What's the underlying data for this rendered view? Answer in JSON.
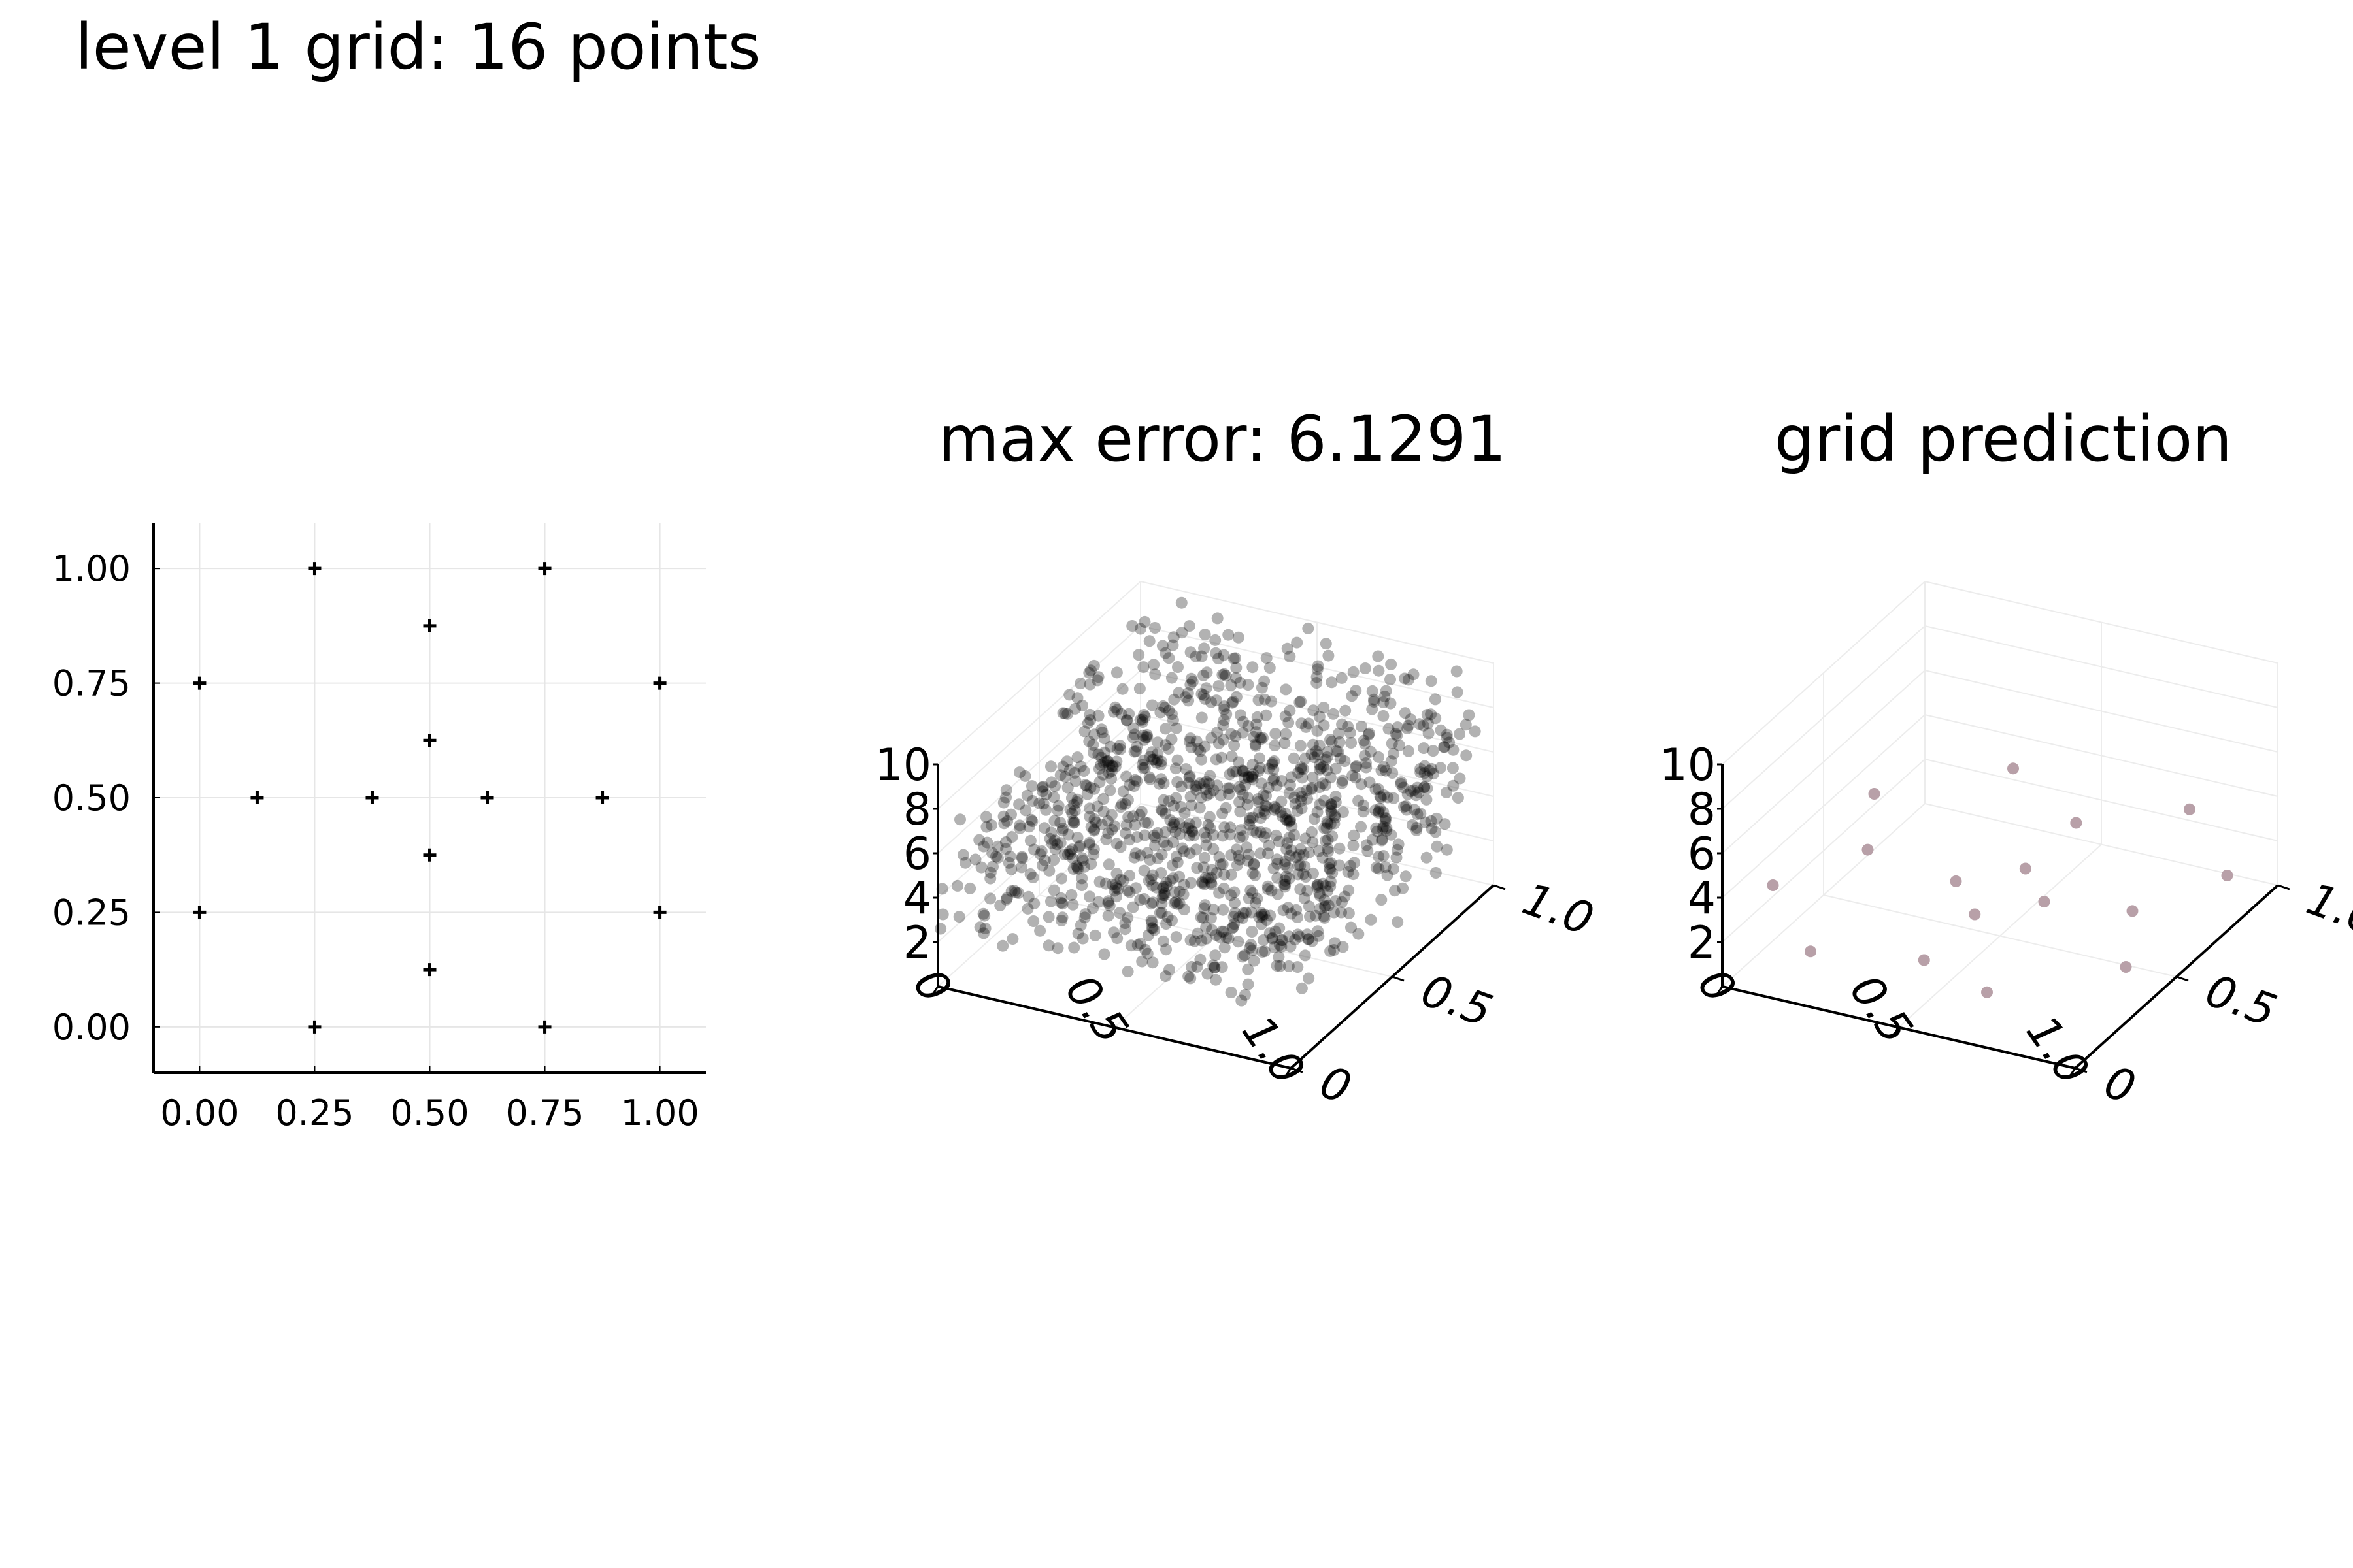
{
  "figure": {
    "title": "level 1 grid: 16 points"
  },
  "colors": {
    "axis": "#000000",
    "grid": "#e6e6e6",
    "markers": "#000000",
    "samples": "#000000",
    "prediction": "#b8a0a8"
  },
  "chart_data": [
    {
      "type": "scatter",
      "title": "",
      "xlabel": "",
      "ylabel": "",
      "marker": "plus",
      "xlim": [
        -0.1,
        1.1
      ],
      "ylim": [
        -0.1,
        1.1
      ],
      "grid": true,
      "x_ticks": [
        "0.00",
        "0.25",
        "0.50",
        "0.75",
        "1.00"
      ],
      "y_ticks": [
        "0.00",
        "0.25",
        "0.50",
        "0.75",
        "1.00"
      ],
      "points": [
        [
          0.25,
          1.0
        ],
        [
          0.75,
          1.0
        ],
        [
          0.5,
          0.875
        ],
        [
          0.0,
          0.75
        ],
        [
          1.0,
          0.75
        ],
        [
          0.5,
          0.625
        ],
        [
          0.125,
          0.5
        ],
        [
          0.375,
          0.5
        ],
        [
          0.625,
          0.5
        ],
        [
          0.875,
          0.5
        ],
        [
          0.5,
          0.375
        ],
        [
          0.0,
          0.25
        ],
        [
          1.0,
          0.25
        ],
        [
          0.5,
          0.125
        ],
        [
          0.25,
          0.0
        ],
        [
          0.75,
          0.0
        ]
      ]
    },
    {
      "type": "scatter",
      "title": "max error: 6.1291",
      "xlabel": "",
      "ylabel": "",
      "zlabel": "",
      "projection": "3d",
      "xlim": [
        0,
        1
      ],
      "ylim": [
        0,
        1
      ],
      "zlim": [
        0,
        10
      ],
      "x_ticks": [
        "0",
        "0.5",
        "1.0"
      ],
      "y_ticks": [
        "0",
        "0.5",
        "1.0"
      ],
      "z_ticks": [
        "2",
        "4",
        "6",
        "8",
        "10"
      ],
      "n_points": 1200,
      "marker_alpha": 0.3,
      "description_of_values": "dense cloud of random samples over the unit square, z between roughly 2 and 10"
    },
    {
      "type": "scatter",
      "title": "grid prediction",
      "xlabel": "",
      "ylabel": "",
      "zlabel": "",
      "projection": "3d",
      "xlim": [
        0,
        1
      ],
      "ylim": [
        0,
        1
      ],
      "zlim": [
        0,
        10
      ],
      "x_ticks": [
        "0",
        "0.5",
        "1.0"
      ],
      "y_ticks": [
        "0",
        "0.5",
        "1.0"
      ],
      "z_ticks": [
        "2",
        "4",
        "6",
        "8",
        "10"
      ],
      "points": [
        [
          0.25,
          1.0,
          2.5
        ],
        [
          0.75,
          1.0,
          2.5
        ],
        [
          0.5,
          0.875,
          2.0
        ],
        [
          0.0,
          0.75,
          2.5
        ],
        [
          1.0,
          0.75,
          2.5
        ],
        [
          0.5,
          0.625,
          2.0
        ],
        [
          0.125,
          0.5,
          2.5
        ],
        [
          0.375,
          0.5,
          2.0
        ],
        [
          0.625,
          0.5,
          2.0
        ],
        [
          0.875,
          0.5,
          2.5
        ],
        [
          0.5,
          0.375,
          2.0
        ],
        [
          0.0,
          0.25,
          2.5
        ],
        [
          1.0,
          0.25,
          2.5
        ],
        [
          0.5,
          0.125,
          2.0
        ],
        [
          0.25,
          0.0,
          2.5
        ],
        [
          0.75,
          0.0,
          2.5
        ]
      ]
    }
  ]
}
